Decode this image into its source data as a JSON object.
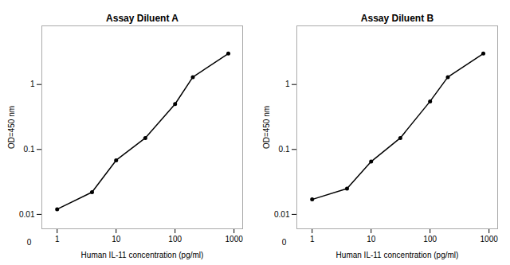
{
  "chart_data": [
    {
      "type": "line",
      "title": "Assay Diluent A",
      "x": [
        1,
        3.9,
        10,
        31.25,
        100,
        200,
        800
      ],
      "values": [
        0.012,
        0.022,
        0.068,
        0.15,
        0.5,
        1.3,
        3.0
      ],
      "xlabel": "Human IL-11 concentration (pg/ml)",
      "ylabel": "OD=450 nm",
      "xlim": [
        0.55,
        1400
      ],
      "ylim": [
        0.006,
        8
      ],
      "xticks": [
        1,
        10,
        100,
        1000
      ],
      "yticks": [
        0.01,
        0.1,
        1
      ],
      "log": true,
      "grid": false,
      "marker": "circle",
      "annotations": [
        "0"
      ]
    },
    {
      "type": "line",
      "title": "Assay Diluent B",
      "x": [
        1,
        3.9,
        10,
        31.25,
        100,
        200,
        800
      ],
      "values": [
        0.017,
        0.025,
        0.065,
        0.15,
        0.55,
        1.3,
        3.0
      ],
      "xlabel": "Human IL-11 concentration (pg/ml)",
      "ylabel": "OD=450 nm",
      "xlim": [
        0.55,
        1400
      ],
      "ylim": [
        0.006,
        8
      ],
      "xticks": [
        1,
        10,
        100,
        1000
      ],
      "yticks": [
        0.01,
        0.1,
        1
      ],
      "log": true,
      "grid": false,
      "marker": "circle",
      "annotations": [
        "0"
      ]
    }
  ]
}
